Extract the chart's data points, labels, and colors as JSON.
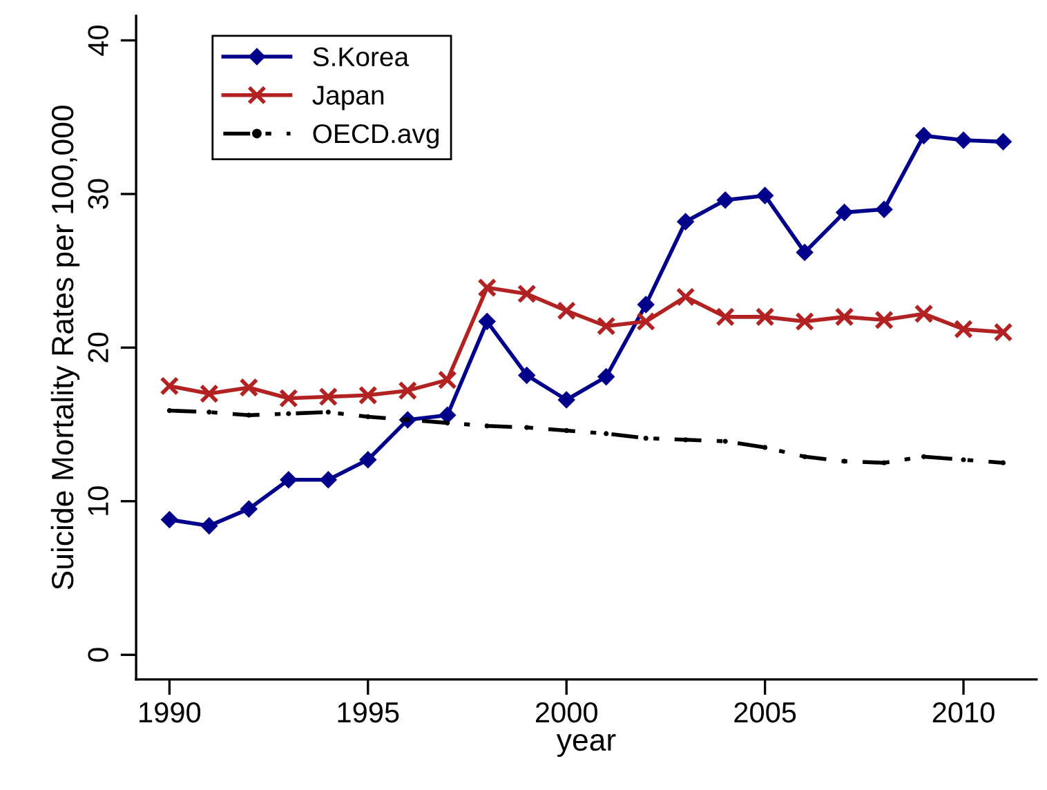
{
  "chart_data": {
    "type": "line",
    "xlabel": "year",
    "ylabel": "Suicide Mortality Rates per 100,000",
    "x": [
      1990,
      1991,
      1992,
      1993,
      1994,
      1995,
      1996,
      1997,
      1998,
      1999,
      2000,
      2001,
      2002,
      2003,
      2004,
      2005,
      2006,
      2007,
      2008,
      2009,
      2010,
      2011
    ],
    "xlim": [
      1989.16,
      2011.84
    ],
    "xticks": [
      1990,
      1995,
      2000,
      2005,
      2010
    ],
    "ylim": [
      -1.6,
      41.6
    ],
    "yticks": [
      0,
      10,
      20,
      30,
      40
    ],
    "grid": false,
    "legend": "top left",
    "series": [
      {
        "name": "S.Korea",
        "color": "#00008b",
        "marker": "diamond",
        "line_style": "solid",
        "values": [
          8.8,
          8.4,
          9.5,
          11.4,
          11.4,
          12.7,
          15.3,
          15.6,
          21.7,
          18.2,
          16.6,
          18.1,
          22.8,
          28.2,
          29.6,
          29.9,
          26.2,
          28.8,
          29.0,
          33.8,
          33.5,
          33.4
        ]
      },
      {
        "name": "Japan",
        "color": "#b22222",
        "marker": "cross",
        "line_style": "solid",
        "values": [
          17.5,
          17.0,
          17.4,
          16.7,
          16.8,
          16.9,
          17.2,
          17.9,
          23.9,
          23.5,
          22.4,
          21.4,
          21.7,
          23.3,
          22.0,
          22.0,
          21.7,
          22.0,
          21.8,
          22.2,
          21.2,
          21.0
        ]
      },
      {
        "name": "OECD.avg",
        "color": "#000000",
        "marker": "circle",
        "line_style": "dashed",
        "values": [
          15.9,
          15.8,
          15.6,
          15.7,
          15.8,
          15.5,
          15.3,
          15.1,
          14.9,
          14.8,
          14.6,
          14.4,
          14.1,
          14.0,
          13.9,
          13.5,
          12.9,
          12.6,
          12.5,
          12.9,
          12.7,
          12.5
        ]
      }
    ]
  }
}
